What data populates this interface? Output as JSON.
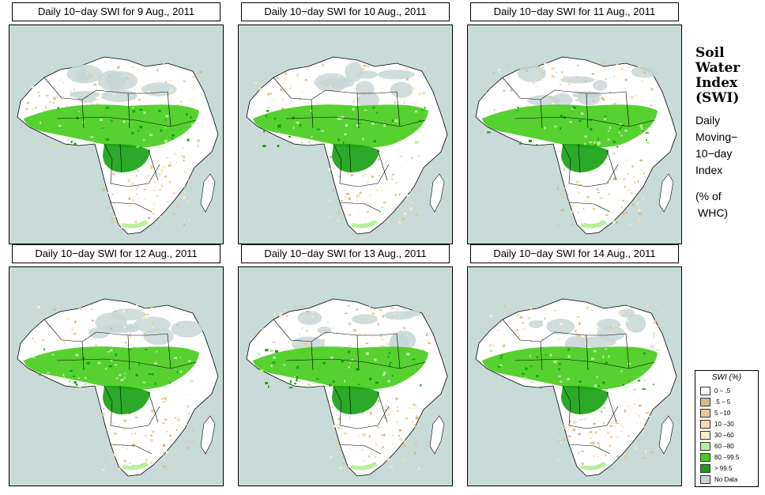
{
  "panels": [
    {
      "title": "Daily 10−day SWI for  9 Aug., 2011"
    },
    {
      "title": "Daily 10−day SWI for  10 Aug., 2011"
    },
    {
      "title": "Daily 10−day SWI for  11 Aug., 2011"
    },
    {
      "title": "Daily 10−day SWI for  12 Aug., 2011"
    },
    {
      "title": "Daily 10−day SWI for  13 Aug., 2011"
    },
    {
      "title": "Daily 10−day SWI for  14 Aug., 2011"
    }
  ],
  "sidebar": {
    "heading": [
      "Soil",
      "Water",
      "Index",
      "(SWI)"
    ],
    "desc": [
      "Daily",
      "Moving−",
      "10−day",
      "Index"
    ],
    "unit": [
      "(% of",
      "WHC)"
    ]
  },
  "legend": {
    "title": "SWI (%)",
    "items": [
      {
        "label": "0 − .5",
        "color": "#ffffff"
      },
      {
        "label": ".5 − 5",
        "color": "#d9b98a"
      },
      {
        "label": "5 −10",
        "color": "#e6c99c"
      },
      {
        "label": "10 −30",
        "color": "#f2dcb3"
      },
      {
        "label": "30 −60",
        "color": "#f7efc9"
      },
      {
        "label": "60 −80",
        "color": "#b8f09a"
      },
      {
        "label": "80 −99.5",
        "color": "#44cc1a"
      },
      {
        "label": "> 99.5",
        "color": "#16a012"
      },
      {
        "label": "No Data",
        "color": "#c9d6d6"
      }
    ]
  },
  "colors": {
    "ocean": "#c9dbd8",
    "land": "#ffffff",
    "nodata": "#c9d6d6"
  }
}
